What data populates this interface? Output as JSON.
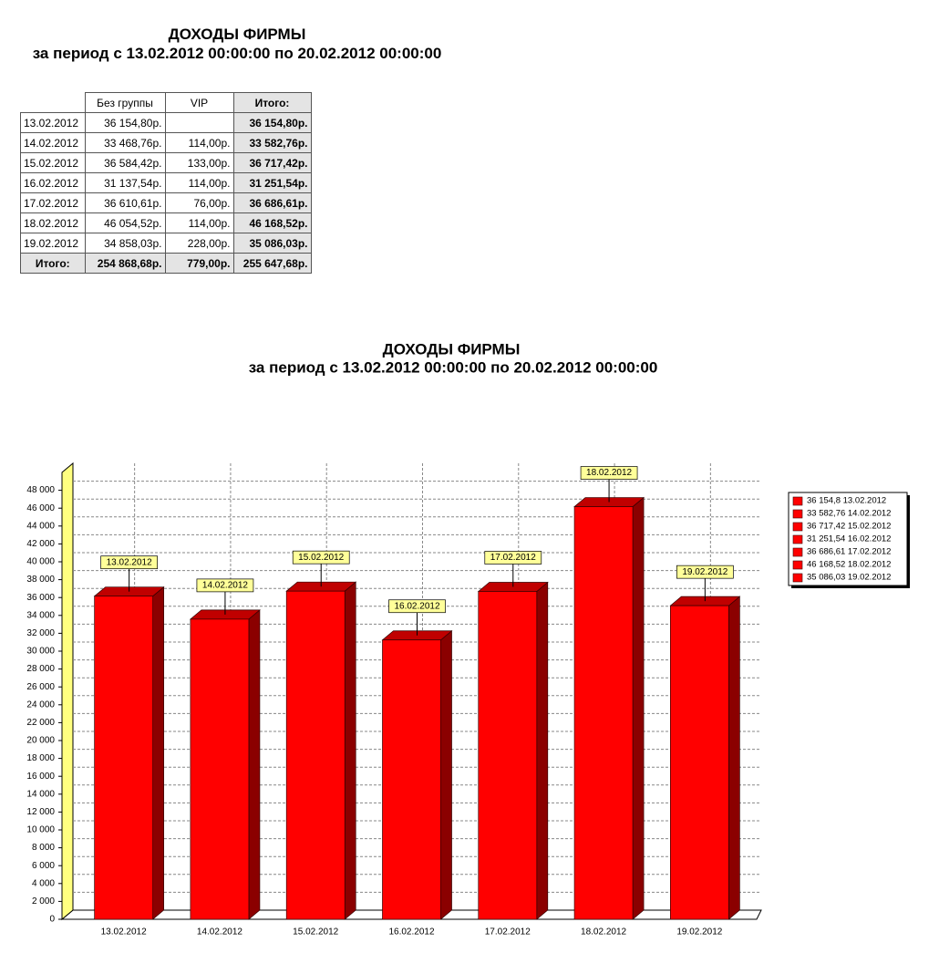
{
  "header": {
    "title": "ДОХОДЫ ФИРМЫ",
    "subtitle": "за период с 13.02.2012 00:00:00 по 20.02.2012 00:00:00"
  },
  "table": {
    "columns": [
      "Без группы",
      "VIP",
      "Итого:"
    ],
    "rows": [
      [
        "13.02.2012",
        "36 154,80р.",
        null,
        "36 154,80р."
      ],
      [
        "14.02.2012",
        "33 468,76р.",
        "114,00р.",
        "33 582,76р."
      ],
      [
        "15.02.2012",
        "36 584,42р.",
        "133,00р.",
        "36 717,42р."
      ],
      [
        "16.02.2012",
        "31 137,54р.",
        "114,00р.",
        "31 251,54р."
      ],
      [
        "17.02.2012",
        "36 610,61р.",
        "76,00р.",
        "36 686,61р."
      ],
      [
        "18.02.2012",
        "46 054,52р.",
        "114,00р.",
        "46 168,52р."
      ],
      [
        "19.02.2012",
        "34 858,03р.",
        "228,00р.",
        "35 086,03р."
      ]
    ],
    "totals": [
      "Итого:",
      "254 868,68р.",
      "779,00р.",
      "255 647,68р."
    ]
  },
  "chart_data": {
    "type": "bar",
    "title": "ДОХОДЫ ФИРМЫ",
    "subtitle": "за период с 13.02.2012 00:00:00 по 20.02.2012 00:00:00",
    "categories": [
      "13.02.2012",
      "14.02.2012",
      "15.02.2012",
      "16.02.2012",
      "17.02.2012",
      "18.02.2012",
      "19.02.2012"
    ],
    "values": [
      36154.8,
      33582.76,
      36717.42,
      31251.54,
      36686.61,
      46168.52,
      35086.03
    ],
    "legend_labels": [
      "36 154,8 13.02.2012",
      "33 582,76 14.02.2012",
      "36 717,42 15.02.2012",
      "31 251,54 16.02.2012",
      "36 686,61 17.02.2012",
      "46 168,52 18.02.2012",
      "35 086,03 19.02.2012"
    ],
    "color": "#ff0000",
    "ylim": [
      0,
      50000
    ],
    "yticks": [
      0,
      {
        "value": 2000,
        "label": "2 000"
      },
      {
        "value": 4000,
        "label": "4 000"
      },
      {
        "value": 6000,
        "label": "6 000"
      },
      {
        "value": 8000,
        "label": "8 000"
      },
      {
        "value": 10000,
        "label": "10 000"
      },
      {
        "value": 12000,
        "label": "12 000"
      },
      {
        "value": 14000,
        "label": "14 000"
      },
      {
        "value": 16000,
        "label": "16 000"
      },
      {
        "value": 18000,
        "label": "18 000"
      },
      {
        "value": 20000,
        "label": "20 000"
      },
      {
        "value": 22000,
        "label": "22 000"
      },
      {
        "value": 24000,
        "label": "24 000"
      },
      {
        "value": 26000,
        "label": "26 000"
      },
      {
        "value": 28000,
        "label": "28 000"
      },
      {
        "value": 30000,
        "label": "30 000"
      },
      {
        "value": 32000,
        "label": "32 000"
      },
      {
        "value": 34000,
        "label": "34 000"
      },
      {
        "value": 36000,
        "label": "36 000"
      },
      {
        "value": 38000,
        "label": "38 000"
      },
      {
        "value": 40000,
        "label": "40 000"
      },
      {
        "value": 42000,
        "label": "42 000"
      },
      {
        "value": 44000,
        "label": "44 000"
      },
      {
        "value": 46000,
        "label": "46 000"
      },
      {
        "value": 48000,
        "label": "48 000"
      }
    ],
    "grid": true
  }
}
